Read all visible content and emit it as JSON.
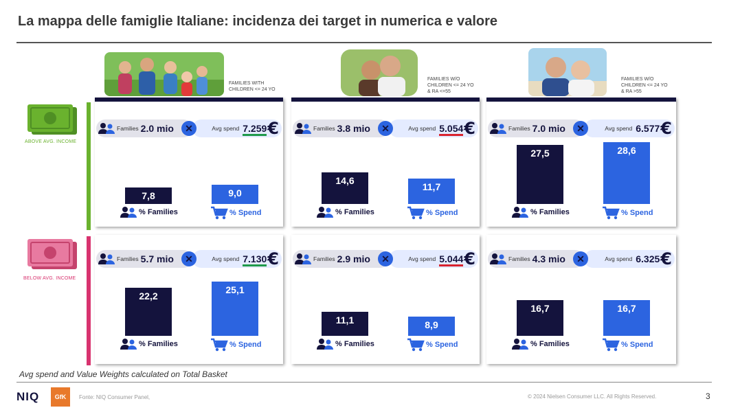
{
  "title": "La mappa delle famiglie Italiane: incidenza dei target in numerica e valore",
  "rows": [
    {
      "label": "ABOVE AVG. INCOME",
      "color": "#6ab22e"
    },
    {
      "label": "BELOW AVG. INCOME",
      "color": "#d8336f"
    }
  ],
  "columns": [
    {
      "label": "FAMILIES WITH CHILDREN <= 24 YO"
    },
    {
      "label": "FAMILIES W/O CHILDREN <= 24 YO & RA <=55"
    },
    {
      "label": "FAMILIES W/O CHILDREN <= 24 YO & RA >55"
    }
  ],
  "common": {
    "families_word": "Families",
    "avg_spend_word": "Avg spend",
    "pct_families": "% Families",
    "pct_spend": "% Spend",
    "x": "✕",
    "euro": "€"
  },
  "panels": [
    {
      "families": "2.0 mio",
      "avg_spend": "7.259",
      "underline": "#1f9a4a",
      "pct_families": "7,8",
      "pct_spend": "9,0"
    },
    {
      "families": "3.8 mio",
      "avg_spend": "5.054",
      "underline": "#d9232e",
      "pct_families": "14,6",
      "pct_spend": "11,7"
    },
    {
      "families": "7.0 mio",
      "avg_spend": "6.577",
      "underline": "",
      "pct_families": "27,5",
      "pct_spend": "28,6"
    },
    {
      "families": "5.7 mio",
      "avg_spend": "7.130",
      "underline": "#1f9a4a",
      "pct_families": "22,2",
      "pct_spend": "25,1"
    },
    {
      "families": "2.9 mio",
      "avg_spend": "5.044",
      "underline": "#d9232e",
      "pct_families": "11,1",
      "pct_spend": "8,9"
    },
    {
      "families": "4.3 mio",
      "avg_spend": "6.325",
      "underline": "",
      "pct_families": "16,7",
      "pct_spend": "16,7"
    }
  ],
  "colors": {
    "navy": "#14133d",
    "blue": "#2c64e0"
  },
  "footnote": "Avg spend and Value Weights calculated on Total Basket",
  "footer": {
    "niq": "NIQ",
    "gfk": "GfK",
    "source": "Fonte: NIQ Consumer Panel,",
    "copyright": "© 2024 Nielsen Consumer LLC. All Rights Reserved.",
    "page": "3"
  }
}
